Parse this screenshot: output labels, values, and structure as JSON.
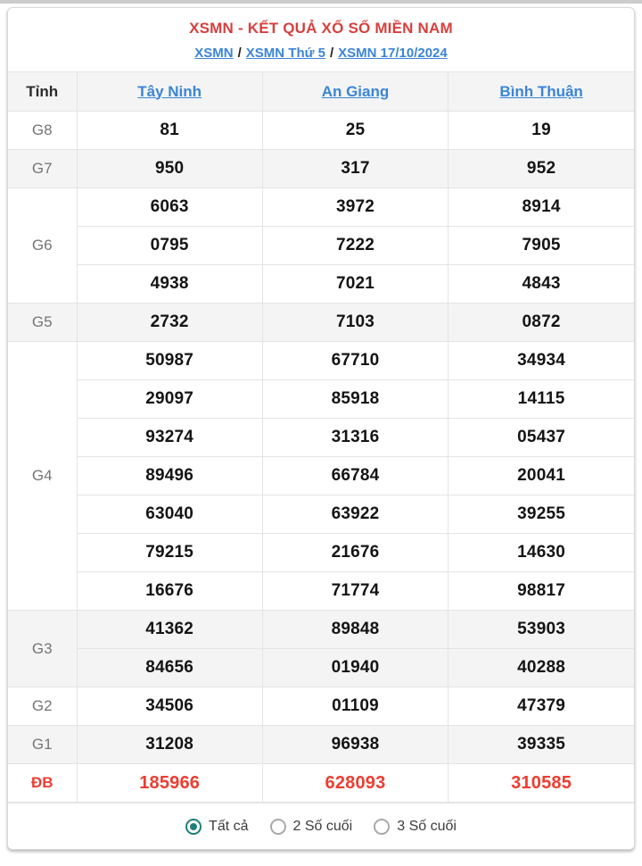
{
  "header": {
    "title": "XSMN - KẾT QUẢ XỔ SỐ MIỀN NAM",
    "separator": "/",
    "breadcrumb": [
      {
        "label": "XSMN"
      },
      {
        "label": "XSMN Thứ 5"
      },
      {
        "label": "XSMN 17/10/2024"
      }
    ]
  },
  "table": {
    "corner_label": "Tỉnh",
    "provinces": [
      "Tây Ninh",
      "An Giang",
      "Bình Thuận"
    ],
    "prizes": [
      {
        "label": "G8",
        "shaded": false,
        "special": false,
        "rows": [
          [
            "81",
            "25",
            "19"
          ]
        ]
      },
      {
        "label": "G7",
        "shaded": true,
        "special": false,
        "rows": [
          [
            "950",
            "317",
            "952"
          ]
        ]
      },
      {
        "label": "G6",
        "shaded": false,
        "special": false,
        "rows": [
          [
            "6063",
            "3972",
            "8914"
          ],
          [
            "0795",
            "7222",
            "7905"
          ],
          [
            "4938",
            "7021",
            "4843"
          ]
        ]
      },
      {
        "label": "G5",
        "shaded": true,
        "special": false,
        "rows": [
          [
            "2732",
            "7103",
            "0872"
          ]
        ]
      },
      {
        "label": "G4",
        "shaded": false,
        "special": false,
        "rows": [
          [
            "50987",
            "67710",
            "34934"
          ],
          [
            "29097",
            "85918",
            "14115"
          ],
          [
            "93274",
            "31316",
            "05437"
          ],
          [
            "89496",
            "66784",
            "20041"
          ],
          [
            "63040",
            "63922",
            "39255"
          ],
          [
            "79215",
            "21676",
            "14630"
          ],
          [
            "16676",
            "71774",
            "98817"
          ]
        ]
      },
      {
        "label": "G3",
        "shaded": true,
        "special": false,
        "rows": [
          [
            "41362",
            "89848",
            "53903"
          ],
          [
            "84656",
            "01940",
            "40288"
          ]
        ]
      },
      {
        "label": "G2",
        "shaded": false,
        "special": false,
        "rows": [
          [
            "34506",
            "01109",
            "47379"
          ]
        ]
      },
      {
        "label": "G1",
        "shaded": true,
        "special": false,
        "rows": [
          [
            "31208",
            "96938",
            "39335"
          ]
        ]
      },
      {
        "label": "ĐB",
        "shaded": false,
        "special": true,
        "rows": [
          [
            "185966",
            "628093",
            "310585"
          ]
        ]
      }
    ]
  },
  "footer": {
    "options": [
      {
        "label": "Tất cả",
        "selected": true
      },
      {
        "label": "2 Số cuối",
        "selected": false
      },
      {
        "label": "3 Số cuối",
        "selected": false
      }
    ]
  },
  "colors": {
    "accent_red": "#d6403e",
    "special_red": "#ee3d30",
    "link_blue": "#3a85d8",
    "shaded_row": "#f4f4f4",
    "border": "#e4e4e4",
    "radio_teal": "#1f7d78"
  }
}
